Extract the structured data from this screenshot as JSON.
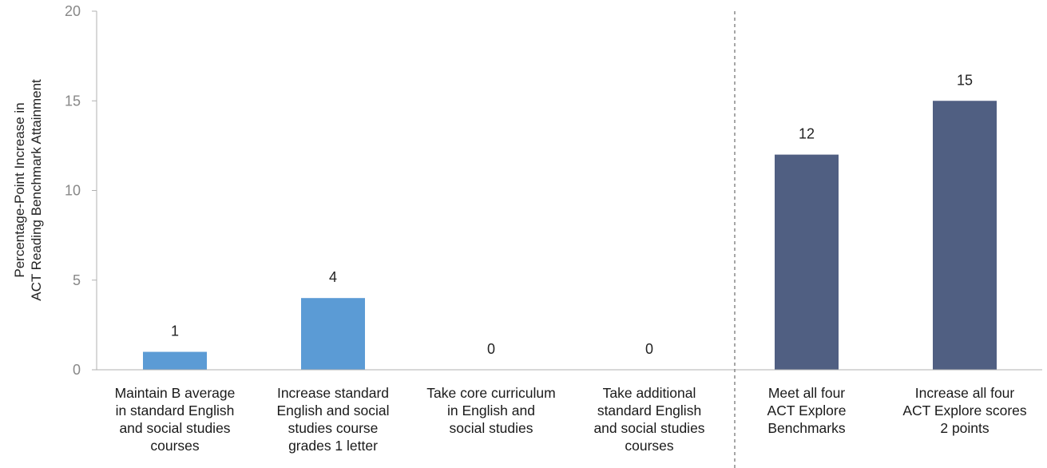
{
  "chart_data": {
    "type": "bar",
    "title": "",
    "ylabel": [
      "Percentage-Point Increase in",
      "ACT Reading Benchmark Attainment"
    ],
    "xlabel": "",
    "ylim": [
      0,
      20
    ],
    "yticks": [
      0,
      5,
      10,
      15,
      20
    ],
    "categories": [
      [
        "Maintain B average",
        "in standard English",
        "and social studies",
        "courses"
      ],
      [
        "Increase standard",
        "English and social",
        "studies course",
        "grades 1 letter"
      ],
      [
        "Take core curriculum",
        "in English and",
        "social studies"
      ],
      [
        "Take additional",
        "standard English",
        "and social studies",
        "courses"
      ],
      [
        "Meet all four",
        "ACT Explore",
        "Benchmarks"
      ],
      [
        "Increase all four",
        "ACT Explore scores",
        "2 points"
      ]
    ],
    "values": [
      1,
      4,
      0,
      0,
      12,
      15
    ],
    "data_labels": [
      "1",
      "4",
      "0",
      "0",
      "12",
      "15"
    ],
    "bar_colors": [
      "#5b9bd5",
      "#5b9bd5",
      "#5b9bd5",
      "#5b9bd5",
      "#505f82",
      "#505f82"
    ],
    "separator": "dashed vertical line between the fourth and fifth categories",
    "grid": false,
    "legend": "none"
  }
}
